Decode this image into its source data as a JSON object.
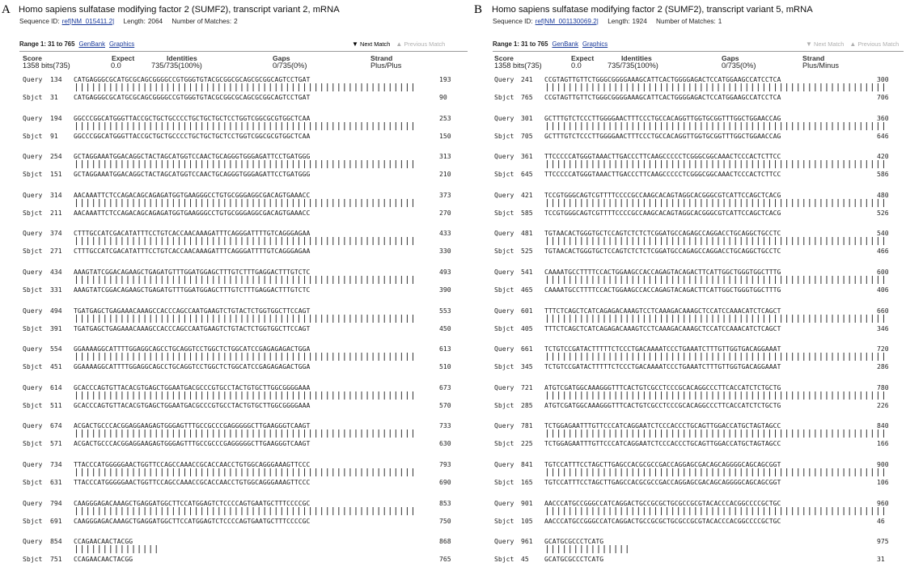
{
  "panels": [
    {
      "letter": "A",
      "title": "Homo sapiens sulfatase modifying factor 2 (SUMF2), transcript variant 2, mRNA",
      "seq_id_label": "Sequence ID:",
      "seq_id": "ref|NM_015411.2|",
      "length_label": "Length:",
      "length": "2064",
      "matches_label": "Number of Matches:",
      "matches": "2",
      "range": "Range 1: 31 to 765",
      "genbank": "GenBank",
      "graphics": "Graphics",
      "next_match": "Next Match",
      "prev_match": "Previous Match",
      "stat_headers": [
        "Score",
        "Expect",
        "Identities",
        "Gaps",
        "Strand"
      ],
      "stat_values": [
        "1358 bits(735)",
        "0.0",
        "735/735(100%)",
        "0/735(0%)",
        "Plus/Plus"
      ],
      "blocks": [
        {
          "qs": "134",
          "q": "CATGAGGGCGCATGCGCAGCGGGGCCGTGGGTGTACGCGGCGCAGCGCGGCAGTCCTGAT",
          "qe": "193",
          "ss": "31",
          "s": "CATGAGGGCGCATGCGCAGCGGGGCCGTGGGTGTACGCGGCGCAGCGCGGCAGTCCTGAT",
          "se": "90"
        },
        {
          "qs": "194",
          "q": "GGCCCGGCATGGGTTACCGCTGCTGCCCCTGCTGCTGCTCCTGGTCGGCGCGTGGCTCAA",
          "qe": "253",
          "ss": "91",
          "s": "GGCCCGGCATGGGTTACCGCTGCTGCCCCTGCTGCTGCTCCTGGTCGGCGCGTGGCTCAA",
          "se": "150"
        },
        {
          "qs": "254",
          "q": "GCTAGGAAATGGACAGGCTACTAGCATGGTCCAACTGCAGGGTGGGAGATTCCTGATGGG",
          "qe": "313",
          "ss": "151",
          "s": "GCTAGGAAATGGACAGGCTACTAGCATGGTCCAACTGCAGGGTGGGAGATTCCTGATGGG",
          "se": "210"
        },
        {
          "qs": "314",
          "q": "AACAAATTCTCCAGACAGCAGAGATGGTGAAGGGCCTGTGCGGGAGGCGACAGTGAAACC",
          "qe": "373",
          "ss": "211",
          "s": "AACAAATTCTCCAGACAGCAGAGATGGTGAAGGGCCTGTGCGGGAGGCGACAGTGAAACC",
          "se": "270"
        },
        {
          "qs": "374",
          "q": "CTTTGCCATCGACATATTTCCTGTCACCAACAAAGATTTCAGGGATTTTGTCAGGGAGAA",
          "qe": "433",
          "ss": "271",
          "s": "CTTTGCCATCGACATATTTCCTGTCACCAACAAAGATTTCAGGGATTTTGTCAGGGAGAA",
          "se": "330"
        },
        {
          "qs": "434",
          "q": "AAAGTATCGGACAGAAGCTGAGATGTTTGGATGGAGCTTTGTCTTTGAGGACTTTGTCTC",
          "qe": "493",
          "ss": "331",
          "s": "AAAGTATCGGACAGAAGCTGAGATGTTTGGATGGAGCTTTGTCTTTGAGGACTTTGTCTC",
          "se": "390"
        },
        {
          "qs": "494",
          "q": "TGATGAGCTGAGAAACAAAGCCACCCAGCCAATGAAGTCTGTACTCTGGTGGCTTCCAGT",
          "qe": "553",
          "ss": "391",
          "s": "TGATGAGCTGAGAAACAAAGCCACCCAGCCAATGAAGTCTGTACTCTGGTGGCTTCCAGT",
          "se": "450"
        },
        {
          "qs": "554",
          "q": "GGAAAAGGCATTTTGGAGGCAGCCTGCAGGTCCTGGCTCTGGCATCCGAGAGAGACTGGA",
          "qe": "613",
          "ss": "451",
          "s": "GGAAAAGGCATTTTGGAGGCAGCCTGCAGGTCCTGGCTCTGGCATCCGAGAGAGACTGGA",
          "se": "510"
        },
        {
          "qs": "614",
          "q": "GCACCCAGTGTTACACGTGAGCTGGAATGACGCCCGTGCCTACTGTGCTTGGCGGGGAAA",
          "qe": "673",
          "ss": "511",
          "s": "GCACCCAGTGTTACACGTGAGCTGGAATGACGCCCGTGCCTACTGTGCTTGGCGGGGAAA",
          "se": "570"
        },
        {
          "qs": "674",
          "q": "ACGACTGCCCACGGAGGAAGAGTGGGAGTTTGCCGCCCGAGGGGGCTTGAAGGGTCAAGT",
          "qe": "733",
          "ss": "571",
          "s": "ACGACTGCCCACGGAGGAAGAGTGGGAGTTTGCCGCCCGAGGGGGCTTGAAGGGTCAAGT",
          "se": "630"
        },
        {
          "qs": "734",
          "q": "TTACCCATGGGGGAACTGGTTCCAGCCAAACCGCACCAACCTGTGGCAGGGAAAGTTCCC",
          "qe": "793",
          "ss": "631",
          "s": "TTACCCATGGGGGAACTGGTTCCAGCCAAACCGCACCAACCTGTGGCAGGGAAAGTTCCC",
          "se": "690"
        },
        {
          "qs": "794",
          "q": "CAAGGGAGACAAAGCTGAGGATGGCTTCCATGGAGTCTCCCCAGTGAATGCTTTCCCCGC",
          "qe": "853",
          "ss": "691",
          "s": "CAAGGGAGACAAAGCTGAGGATGGCTTCCATGGAGTCTCCCCAGTGAATGCTTTCCCCGC",
          "se": "750"
        },
        {
          "qs": "854",
          "q": "CCAGAACAACTACGG",
          "qe": "868",
          "ss": "751",
          "s": "CCAGAACAACTACGG",
          "se": "765"
        }
      ]
    },
    {
      "letter": "B",
      "title": "Homo sapiens sulfatase modifying factor 2 (SUMF2), transcript variant 5, mRNA",
      "seq_id_label": "Sequence ID:",
      "seq_id": "ref|NM_001130069.2|",
      "length_label": "Length:",
      "length": "1924",
      "matches_label": "Number of Matches:",
      "matches": "1",
      "range": "Range 1: 31 to 765",
      "genbank": "GenBank",
      "graphics": "Graphics",
      "next_match": "Next Match",
      "prev_match": "Previous Match",
      "stat_headers": [
        "Score",
        "Expect",
        "Identities",
        "Gaps",
        "Strand"
      ],
      "stat_values": [
        "1358 bits(735)",
        "0.0",
        "735/735(100%)",
        "0/735(0%)",
        "Plus/Minus"
      ],
      "blocks": [
        {
          "qs": "241",
          "q": "CCGTAGTTGTTCTGGGCGGGGAAAGCATTCACTGGGGAGACTCCATGGAAGCCATCCTCA",
          "qe": "300",
          "ss": "765",
          "s": "CCGTAGTTGTTCTGGGCGGGGAAAGCATTCACTGGGGAGACTCCATGGAAGCCATCCTCA",
          "se": "706"
        },
        {
          "qs": "301",
          "q": "GCTTTGTCTCCCTTGGGGAACTTTCCCTGCCACAGGTTGGTGCGGTTTGGCTGGAACCAG",
          "qe": "360",
          "ss": "705",
          "s": "GCTTTGTCTCCCTTGGGGAACTTTCCCTGCCACAGGTTGGTGCGGTTTGGCTGGAACCAG",
          "se": "646"
        },
        {
          "qs": "361",
          "q": "TTCCCCCATGGGTAAACTTGACCCTTCAAGCCCCCTCGGGCGGCAAACTCCCACTCTTCC",
          "qe": "420",
          "ss": "645",
          "s": "TTCCCCCATGGGTAAACTTGACCCTTCAAGCCCCCTCGGGCGGCAAACTCCCACTCTTCC",
          "se": "586"
        },
        {
          "qs": "421",
          "q": "TCCGTGGGCAGTCGTTTTCCCCGCCAAGCACAGTAGGCACGGGCGTCATTCCAGCTCACG",
          "qe": "480",
          "ss": "585",
          "s": "TCCGTGGGCAGTCGTTTTCCCCGCCAAGCACAGTAGGCACGGGCGTCATTCCAGCTCACG",
          "se": "526"
        },
        {
          "qs": "481",
          "q": "TGTAACACTGGGTGCTCCAGTCTCTCTCGGATGCCAGAGCCAGGACCTGCAGGCTGCCTC",
          "qe": "540",
          "ss": "525",
          "s": "TGTAACACTGGGTGCTCCAGTCTCTCTCGGATGCCAGAGCCAGGACCTGCAGGCTGCCTC",
          "se": "466"
        },
        {
          "qs": "541",
          "q": "CAAAATGCCTTTTCCACTGGAAGCCACCAGAGTACAGACTTCATTGGCTGGGTGGCTTTG",
          "qe": "600",
          "ss": "465",
          "s": "CAAAATGCCTTTTCCACTGGAAGCCACCAGAGTACAGACTTCATTGGCTGGGTGGCTTTG",
          "se": "406"
        },
        {
          "qs": "601",
          "q": "TTTCTCAGCTCATCAGAGACAAAGTCCTCAAAGACAAAGCTCCATCCAAACATCTCAGCT",
          "qe": "660",
          "ss": "405",
          "s": "TTTCTCAGCTCATCAGAGACAAAGTCCTCAAAGACAAAGCTCCATCCAAACATCTCAGCT",
          "se": "346"
        },
        {
          "qs": "661",
          "q": "TCTGTCCGATACTTTTTCTCCCTGACAAAATCCCTGAAATCTTTGTTGGTGACAGGAAAT",
          "qe": "720",
          "ss": "345",
          "s": "TCTGTCCGATACTTTTTCTCCCTGACAAAATCCCTGAAATCTTTGTTGGTGACAGGAAAT",
          "se": "286"
        },
        {
          "qs": "721",
          "q": "ATGTCGATGGCAAAGGGTTTCACTGTCGCCTCCCGCACAGGCCCTTCACCATCTCTGCTG",
          "qe": "780",
          "ss": "285",
          "s": "ATGTCGATGGCAAAGGGTTTCACTGTCGCCTCCCGCACAGGCCCTTCACCATCTCTGCTG",
          "se": "226"
        },
        {
          "qs": "781",
          "q": "TCTGGAGAATTTGTTCCCATCAGGAATCTCCCACCCTGCAGTTGGACCATGCTAGTAGCC",
          "qe": "840",
          "ss": "225",
          "s": "TCTGGAGAATTTGTTCCCATCAGGAATCTCCCACCCTGCAGTTGGACCATGCTAGTAGCC",
          "se": "166"
        },
        {
          "qs": "841",
          "q": "TGTCCATTTCCTAGCTTGAGCCACGCGCCGACCAGGAGCGACAGCAGGGGCAGCAGCGGT",
          "qe": "900",
          "ss": "165",
          "s": "TGTCCATTTCCTAGCTTGAGCCACGCGCCGACCAGGAGCGACAGCAGGGGCAGCAGCGGT",
          "se": "106"
        },
        {
          "qs": "901",
          "q": "AACCCATGCCGGGCCATCAGGACTGCCGCGCTGCGCCGCGTACACCCACGGCCCCGCTGC",
          "qe": "960",
          "ss": "105",
          "s": "AACCCATGCCGGGCCATCAGGACTGCCGCGCTGCGCCGCGTACACCCACGGCCCCGCTGC",
          "se": "46"
        },
        {
          "qs": "961",
          "q": "GCATGCGCCCTCATG",
          "qe": "975",
          "ss": "45",
          "s": "GCATGCGCCCTCATG",
          "se": "31"
        }
      ]
    }
  ]
}
